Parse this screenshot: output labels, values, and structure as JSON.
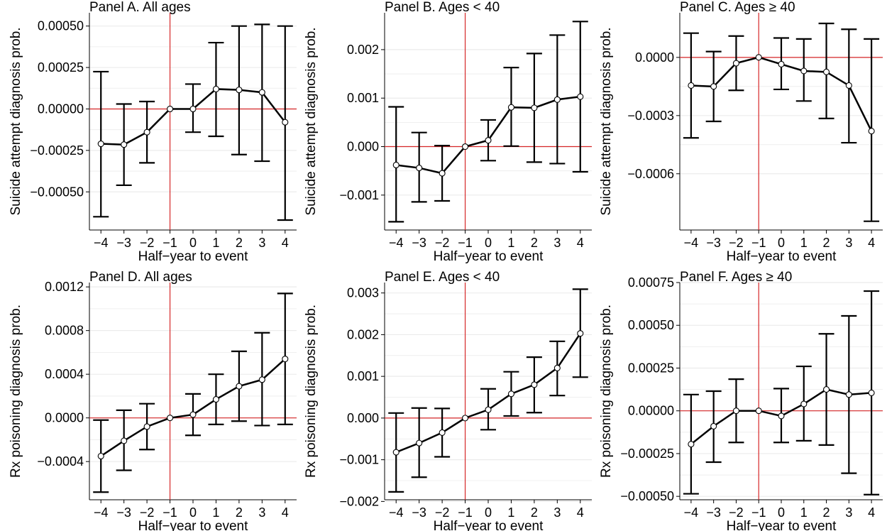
{
  "chart_data": [
    {
      "type": "line",
      "title": "Panel A. All ages",
      "xlabel": "Half−year to event",
      "ylabel": "Suicide attempt diagnosis prob.",
      "x": [
        -4,
        -3,
        -2,
        -1,
        0,
        1,
        2,
        3,
        4
      ],
      "x_tick_labels": [
        "−4",
        "−3",
        "−2",
        "−1",
        "0",
        "1",
        "2",
        "3",
        "4"
      ],
      "estimate": [
        -0.00021,
        -0.000215,
        -0.00014,
        0,
        0,
        0.00012,
        0.000115,
        0.0001,
        -8e-05
      ],
      "ci_low": [
        -0.00065,
        -0.00046,
        -0.000325,
        0,
        -0.00014,
        -0.000165,
        -0.000275,
        -0.000315,
        -0.00067
      ],
      "ci_high": [
        0.000225,
        3e-05,
        4.5e-05,
        0,
        0.00015,
        0.0004,
        0.0005,
        0.00051,
        0.0005
      ],
      "y_ticks": [
        -0.0005,
        -0.00025,
        0,
        0.00025,
        0.0005
      ],
      "y_tick_labels": [
        "−0.00050",
        "−0.00025",
        "0.00000",
        "0.00025",
        "0.00050"
      ],
      "ylim": [
        -0.00073,
        0.00058
      ],
      "xlim": [
        -4.5,
        4.5
      ],
      "reference_x": -1,
      "reference_y": 0
    },
    {
      "type": "line",
      "title": "Panel B. Ages < 40",
      "xlabel": "Half−year to event",
      "ylabel": "Suicide attempt diagnosis prob.",
      "x": [
        -4,
        -3,
        -2,
        -1,
        0,
        1,
        2,
        3,
        4
      ],
      "x_tick_labels": [
        "−4",
        "−3",
        "−2",
        "−1",
        "0",
        "1",
        "2",
        "3",
        "4"
      ],
      "estimate": [
        -0.00038,
        -0.00044,
        -0.00055,
        0,
        0.00013,
        0.00081,
        0.0008,
        0.00097,
        0.00103
      ],
      "ci_low": [
        -0.00155,
        -0.00114,
        -0.00112,
        0,
        -0.00029,
        1e-05,
        -0.00032,
        -0.00035,
        -0.00052
      ],
      "ci_high": [
        0.00082,
        0.00029,
        2e-05,
        0,
        0.00055,
        0.00163,
        0.00192,
        0.0023,
        0.00258
      ],
      "y_ticks": [
        -0.001,
        0,
        0.001,
        0.002
      ],
      "y_tick_labels": [
        "−0.001",
        "0.000",
        "0.001",
        "0.002"
      ],
      "ylim": [
        -0.00172,
        0.00276
      ],
      "xlim": [
        -4.5,
        4.5
      ],
      "reference_x": -1,
      "reference_y": 0
    },
    {
      "type": "line",
      "title": "Panel C. Ages ≥ 40",
      "xlabel": "Half−year to event",
      "ylabel": "Suicide attempt diagnosis prob.",
      "x": [
        -4,
        -3,
        -2,
        -1,
        0,
        1,
        2,
        3,
        4
      ],
      "x_tick_labels": [
        "−4",
        "−3",
        "−2",
        "−1",
        "0",
        "1",
        "2",
        "3",
        "4"
      ],
      "estimate": [
        -0.000145,
        -0.00015,
        -3e-05,
        0,
        -3.5e-05,
        -7e-05,
        -7.5e-05,
        -0.000145,
        -0.00038
      ],
      "ci_low": [
        -0.000415,
        -0.00033,
        -0.00017,
        0,
        -0.000165,
        -0.000225,
        -0.000315,
        -0.00044,
        -0.000845
      ],
      "ci_high": [
        0.000125,
        3e-05,
        0.00011,
        0,
        0.0001,
        9.5e-05,
        0.000175,
        0.000145,
        9.5e-05
      ],
      "y_ticks": [
        -0.0006,
        -0.0003,
        0
      ],
      "y_tick_labels": [
        "−0.0006",
        "−0.0003",
        "0.0000"
      ],
      "ylim": [
        -0.00089,
        0.00023
      ],
      "xlim": [
        -4.5,
        4.5
      ],
      "reference_x": -1,
      "reference_y": 0
    },
    {
      "type": "line",
      "title": "Panel D. All ages",
      "xlabel": "Half−year to event",
      "ylabel": "Rx poisoning diagnosis prob.",
      "x": [
        -4,
        -3,
        -2,
        -1,
        0,
        1,
        2,
        3,
        4
      ],
      "x_tick_labels": [
        "−4",
        "−3",
        "−2",
        "−1",
        "0",
        "1",
        "2",
        "3",
        "4"
      ],
      "estimate": [
        -0.00035,
        -0.00021,
        -8e-05,
        0,
        3e-05,
        0.00017,
        0.00029,
        0.00035,
        0.00054
      ],
      "ci_low": [
        -0.00068,
        -0.00048,
        -0.00029,
        0,
        -0.00016,
        -6e-05,
        -3e-05,
        -7e-05,
        -6e-05
      ],
      "ci_high": [
        -2e-05,
        7e-05,
        0.00013,
        0,
        0.00022,
        0.0004,
        0.00061,
        0.00078,
        0.00114
      ],
      "y_ticks": [
        -0.0004,
        0,
        0.0004,
        0.0008,
        0.0012
      ],
      "y_tick_labels": [
        "−0.0004",
        "0.0000",
        "0.0004",
        "0.0008",
        "0.0012"
      ],
      "ylim": [
        -0.00075,
        0.00124
      ],
      "xlim": [
        -4.5,
        4.5
      ],
      "reference_x": -1,
      "reference_y": 0
    },
    {
      "type": "line",
      "title": "Panel E. Ages < 40",
      "xlabel": "Half−year to event",
      "ylabel": "Rx poisoning diagnosis prob.",
      "x": [
        -4,
        -3,
        -2,
        -1,
        0,
        1,
        2,
        3,
        4
      ],
      "x_tick_labels": [
        "−4",
        "−3",
        "−2",
        "−1",
        "0",
        "1",
        "2",
        "3",
        "4"
      ],
      "estimate": [
        -0.00082,
        -0.0006,
        -0.00035,
        0,
        0.0002,
        0.00058,
        0.0008,
        0.0012,
        0.00203
      ],
      "ci_low": [
        -0.00177,
        -0.00142,
        -0.00093,
        0,
        -0.00028,
        5e-05,
        0.00013,
        0.00054,
        0.00098
      ],
      "ci_high": [
        0.00012,
        0.00024,
        0.00023,
        0,
        0.0007,
        0.00111,
        0.00146,
        0.00184,
        0.00309
      ],
      "y_ticks": [
        -0.002,
        -0.001,
        0,
        0.001,
        0.002,
        0.003
      ],
      "y_tick_labels": [
        "−0.002",
        "−0.001",
        "0.000",
        "0.001",
        "0.002",
        "0.003"
      ],
      "ylim": [
        -0.00196,
        0.00325
      ],
      "xlim": [
        -4.5,
        4.5
      ],
      "reference_x": -1,
      "reference_y": 0
    },
    {
      "type": "line",
      "title": "Panel F. Ages ≥ 40",
      "xlabel": "Half−year to event",
      "ylabel": "Rx poisoning diagnosis prob.",
      "x": [
        -4,
        -3,
        -2,
        -1,
        0,
        1,
        2,
        3,
        4
      ],
      "x_tick_labels": [
        "−4",
        "−3",
        "−2",
        "−1",
        "0",
        "1",
        "2",
        "3",
        "4"
      ],
      "estimate": [
        -0.000195,
        -9e-05,
        0,
        0,
        -3e-05,
        4e-05,
        0.000125,
        9.5e-05,
        0.000105
      ],
      "ci_low": [
        -0.000485,
        -0.0003,
        -0.000185,
        0,
        -0.000185,
        -0.000175,
        -0.0002,
        -0.000365,
        -0.00049
      ],
      "ci_high": [
        9.5e-05,
        0.000115,
        0.000185,
        0,
        0.00013,
        0.00026,
        0.00045,
        0.000555,
        0.0007
      ],
      "y_ticks": [
        -0.0005,
        -0.00025,
        0,
        0.00025,
        0.0005,
        0.00075
      ],
      "y_tick_labels": [
        "−0.00050",
        "−0.00025",
        "0.00000",
        "0.00025",
        "0.00050",
        "0.00075"
      ],
      "ylim": [
        -0.00052,
        0.00075
      ],
      "xlim": [
        -4.5,
        4.5
      ],
      "reference_x": -1,
      "reference_y": 0
    }
  ],
  "colors": {
    "reference_line": "#d62728",
    "series_line": "#000000",
    "gridline": "#ebebeb",
    "marker_fill": "#ffffff"
  }
}
